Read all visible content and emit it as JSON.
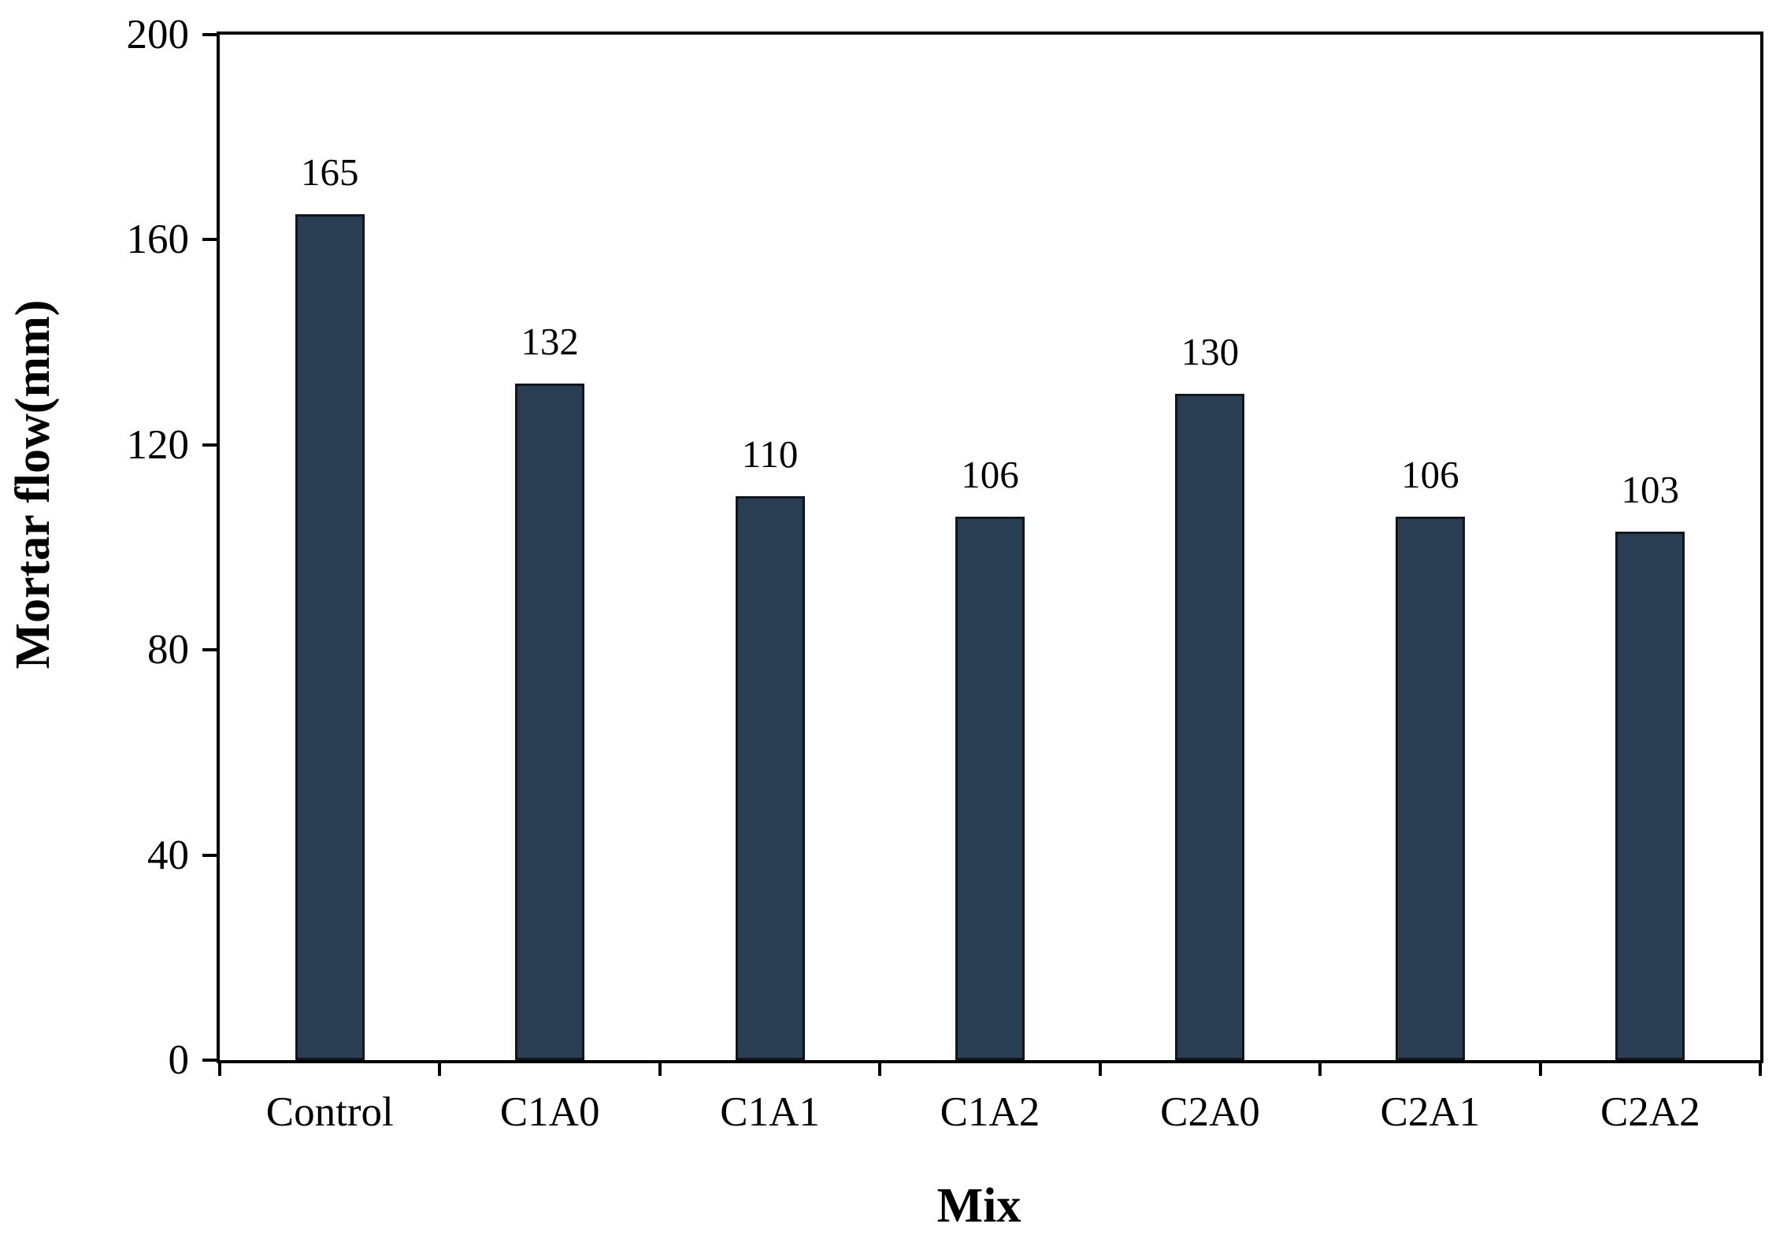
{
  "chart_data": {
    "type": "bar",
    "categories": [
      "Control",
      "C1A0",
      "C1A1",
      "C1A2",
      "C2A0",
      "C2A1",
      "C2A2"
    ],
    "values": [
      165,
      132,
      110,
      106,
      130,
      106,
      103
    ],
    "xlabel": "Mix",
    "ylabel": "Mortar flow(mm)",
    "yticks": [
      0,
      40,
      80,
      120,
      160,
      200
    ],
    "ylim": [
      0,
      200
    ],
    "grid": false,
    "legend": "none",
    "colors": {
      "bar_fill": "#2a3e53",
      "bar_border": "#11161c",
      "axis": "#000000",
      "text": "#000000"
    }
  }
}
